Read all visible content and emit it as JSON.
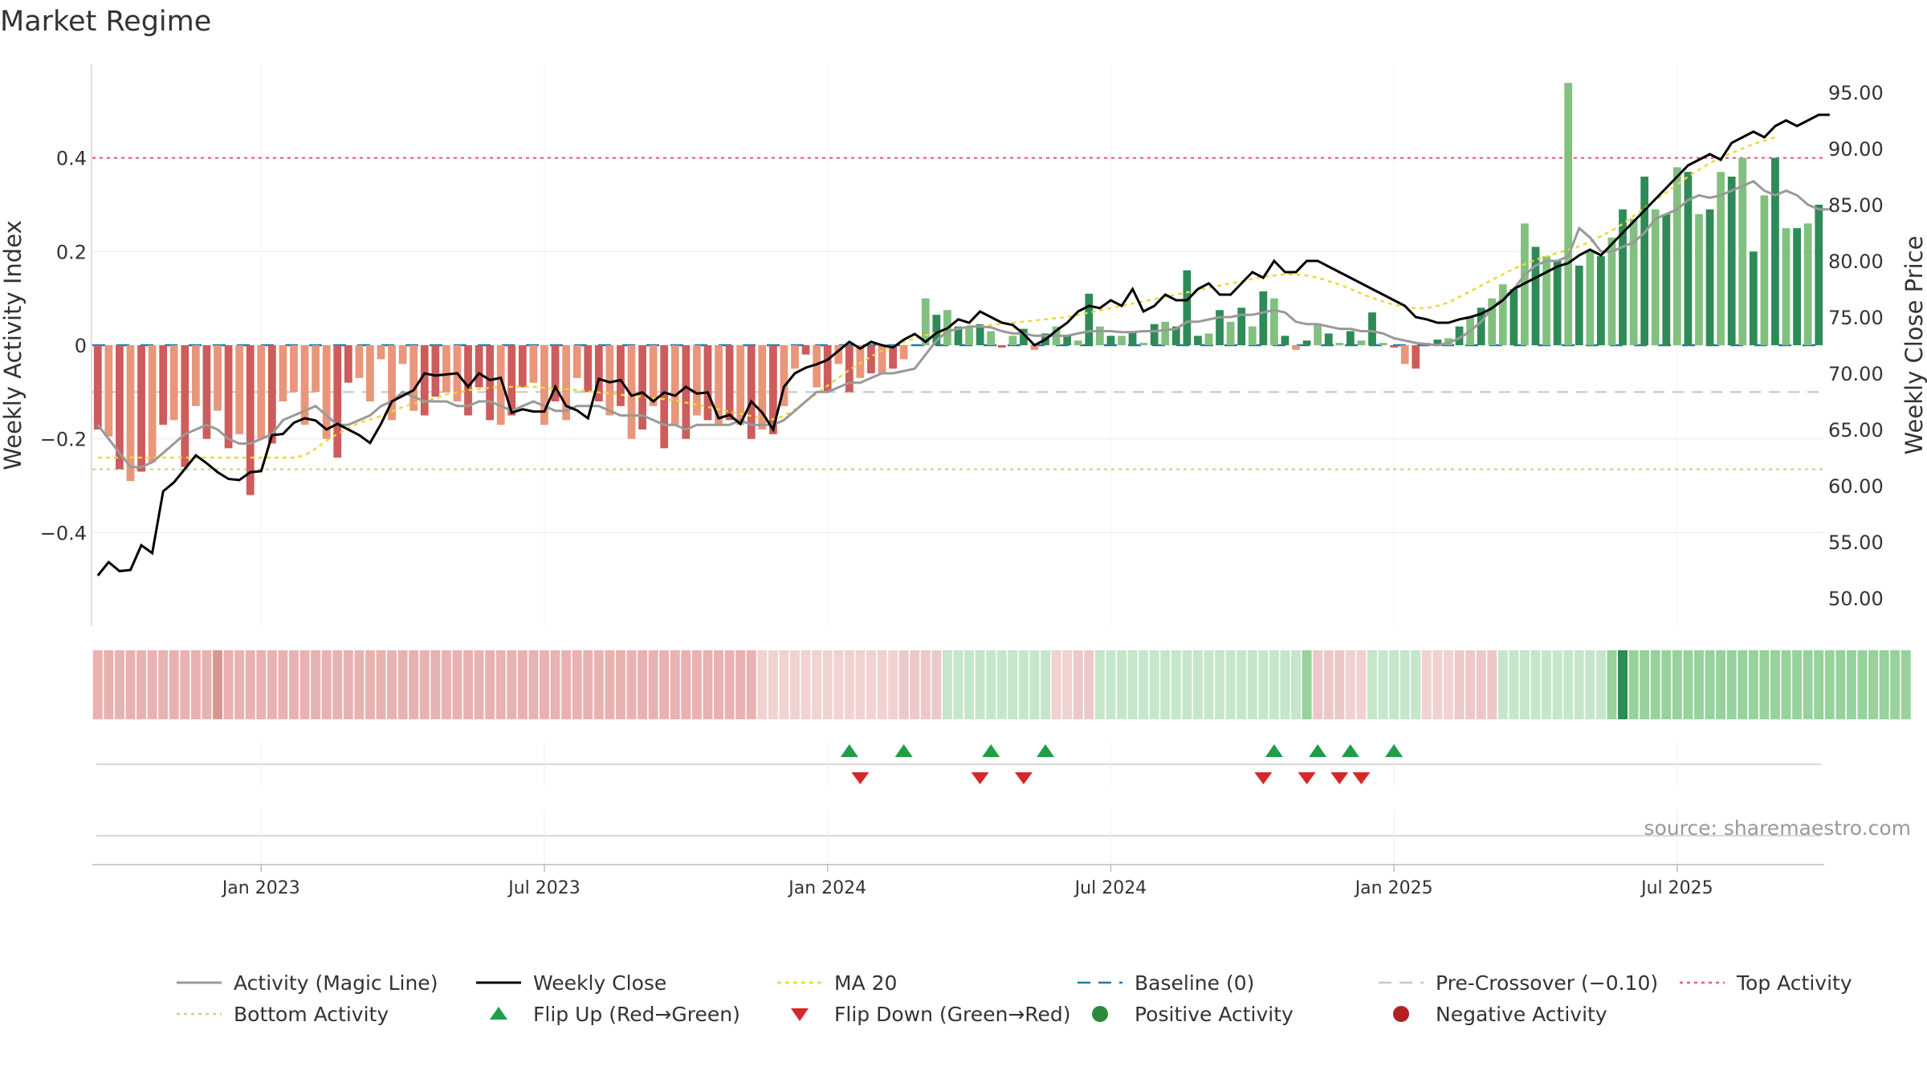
{
  "chart_data": {
    "type": "bar",
    "title": "Market Regime",
    "ylabel": "Weekly Activity Index",
    "y2label": "Weekly Close Price",
    "source": "source: sharemaestro.com",
    "ylim": [
      -0.6,
      0.6
    ],
    "y2lim": [
      47.5,
      97.5
    ],
    "y_ticks": [
      {
        "v": 0.4,
        "label": "0.4"
      },
      {
        "v": 0.2,
        "label": "0.2"
      },
      {
        "v": 0,
        "label": "0"
      },
      {
        "v": -0.2,
        "label": "−0.2"
      },
      {
        "v": -0.4,
        "label": "−0.4"
      }
    ],
    "y2_ticks": [
      {
        "v": 95,
        "label": "95.00"
      },
      {
        "v": 90,
        "label": "90.00"
      },
      {
        "v": 85,
        "label": "85.00"
      },
      {
        "v": 80,
        "label": "80.00"
      },
      {
        "v": 75,
        "label": "75.00"
      },
      {
        "v": 70,
        "label": "70.00"
      },
      {
        "v": 65,
        "label": "65.00"
      },
      {
        "v": 60,
        "label": "60.00"
      },
      {
        "v": 55,
        "label": "55.00"
      },
      {
        "v": 50,
        "label": "50.00"
      }
    ],
    "x_ticks": [
      {
        "i": 15,
        "label": "Jan 2023"
      },
      {
        "i": 41,
        "label": "Jul 2023"
      },
      {
        "i": 67,
        "label": "Jan 2024"
      },
      {
        "i": 93,
        "label": "Jul 2024"
      },
      {
        "i": 119,
        "label": "Jan 2025"
      },
      {
        "i": 145,
        "label": "Jul 2025"
      }
    ],
    "reference_lines": {
      "baseline": 0,
      "pre_crossover": -0.1,
      "top_activity": 0.4,
      "bottom_activity": -0.265
    },
    "activity": [
      -0.18,
      -0.195,
      -0.265,
      -0.29,
      -0.27,
      -0.25,
      -0.17,
      -0.16,
      -0.26,
      -0.13,
      -0.2,
      -0.14,
      -0.22,
      -0.19,
      -0.32,
      -0.2,
      -0.21,
      -0.12,
      -0.1,
      -0.17,
      -0.1,
      -0.2,
      -0.24,
      -0.08,
      -0.07,
      -0.12,
      -0.03,
      -0.16,
      -0.04,
      -0.14,
      -0.15,
      -0.11,
      -0.1,
      -0.12,
      -0.15,
      -0.09,
      -0.16,
      -0.17,
      -0.15,
      -0.09,
      -0.08,
      -0.17,
      -0.12,
      -0.16,
      -0.07,
      -0.1,
      -0.12,
      -0.15,
      -0.13,
      -0.2,
      -0.18,
      -0.13,
      -0.22,
      -0.17,
      -0.2,
      -0.15,
      -0.16,
      -0.17,
      -0.16,
      -0.17,
      -0.2,
      -0.18,
      -0.19,
      -0.13,
      -0.05,
      -0.02,
      -0.09,
      -0.1,
      -0.04,
      -0.1,
      -0.07,
      -0.06,
      -0.06,
      -0.05,
      -0.03,
      0,
      0.1,
      0.065,
      0.075,
      0.04,
      0.04,
      0.045,
      0.03,
      -0.005,
      0.02,
      0.035,
      -0.01,
      0.025,
      0.04,
      0.02,
      0.01,
      0.11,
      0.04,
      0.02,
      0.02,
      0.03,
      0.005,
      0.045,
      0.05,
      0.04,
      0.16,
      0.02,
      0.025,
      0.075,
      0.05,
      0.08,
      0.04,
      0.115,
      0.1,
      0.02,
      -0.01,
      0.01,
      0.045,
      0.025,
      0.005,
      0.03,
      0.01,
      0.07,
      0.005,
      -0.005,
      -0.04,
      -0.05,
      0.005,
      0.012,
      0.015,
      0.04,
      0.06,
      0.08,
      0.1,
      0.13,
      0.12,
      0.26,
      0.21,
      0.19,
      0.18,
      0.56,
      0.17,
      0.2,
      0.19,
      0.23,
      0.29,
      0.27,
      0.36,
      0.29,
      0.28,
      0.38,
      0.37,
      0.28,
      0.29,
      0.37,
      0.36,
      0.4,
      0.2,
      0.32,
      0.4,
      0.25,
      0.25,
      0.26,
      0.3
    ],
    "magic_line": [
      -0.17,
      -0.2,
      -0.23,
      -0.26,
      -0.26,
      -0.25,
      -0.23,
      -0.21,
      -0.19,
      -0.18,
      -0.17,
      -0.18,
      -0.2,
      -0.21,
      -0.21,
      -0.2,
      -0.19,
      -0.16,
      -0.15,
      -0.14,
      -0.13,
      -0.15,
      -0.17,
      -0.17,
      -0.16,
      -0.15,
      -0.13,
      -0.12,
      -0.1,
      -0.11,
      -0.12,
      -0.12,
      -0.12,
      -0.13,
      -0.13,
      -0.12,
      -0.12,
      -0.13,
      -0.14,
      -0.13,
      -0.12,
      -0.13,
      -0.14,
      -0.14,
      -0.13,
      -0.13,
      -0.13,
      -0.14,
      -0.15,
      -0.15,
      -0.15,
      -0.16,
      -0.17,
      -0.17,
      -0.18,
      -0.17,
      -0.17,
      -0.17,
      -0.17,
      -0.16,
      -0.17,
      -0.17,
      -0.17,
      -0.16,
      -0.14,
      -0.12,
      -0.1,
      -0.1,
      -0.09,
      -0.08,
      -0.08,
      -0.07,
      -0.06,
      -0.06,
      -0.055,
      -0.05,
      -0.02,
      0.01,
      0.03,
      0.035,
      0.04,
      0.04,
      0.038,
      0.03,
      0.025,
      0.025,
      0.02,
      0.02,
      0.02,
      0.02,
      0.025,
      0.03,
      0.03,
      0.03,
      0.028,
      0.028,
      0.03,
      0.03,
      0.032,
      0.035,
      0.05,
      0.05,
      0.055,
      0.06,
      0.06,
      0.065,
      0.065,
      0.07,
      0.075,
      0.07,
      0.05,
      0.045,
      0.045,
      0.04,
      0.035,
      0.035,
      0.03,
      0.03,
      0.025,
      0.015,
      0.01,
      0.005,
      0.002,
      0.0,
      0.005,
      0.015,
      0.03,
      0.05,
      0.08,
      0.1,
      0.12,
      0.15,
      0.17,
      0.18,
      0.18,
      0.19,
      0.25,
      0.23,
      0.2,
      0.2,
      0.21,
      0.22,
      0.24,
      0.27,
      0.28,
      0.29,
      0.31,
      0.32,
      0.315,
      0.32,
      0.33,
      0.34,
      0.35,
      0.33,
      0.32,
      0.33,
      0.32,
      0.3,
      0.29,
      0.29
    ],
    "weekly_close": [
      52,
      53.2,
      52.4,
      52.5,
      54.7,
      54,
      59.5,
      60.3,
      61.5,
      62.7,
      62,
      61.2,
      60.6,
      60.5,
      61.2,
      61.3,
      64.5,
      64.6,
      65.6,
      66,
      65.8,
      65,
      65.5,
      65,
      64.5,
      63.8,
      65.5,
      67.5,
      68,
      68.5,
      70,
      69.8,
      69.9,
      70,
      68.8,
      70,
      69.4,
      69.6,
      66.5,
      66.8,
      66.6,
      66.6,
      68.8,
      67.1,
      66.7,
      66,
      69.5,
      69.2,
      69.4,
      68,
      68.3,
      67.5,
      68.3,
      68,
      68.8,
      68.2,
      68.3,
      66,
      66.3,
      65.5,
      67.5,
      66.5,
      65,
      68.8,
      70,
      70.5,
      70.8,
      71.2,
      72,
      72.8,
      72.2,
      72.8,
      72.5,
      72.3,
      73,
      73.5,
      72.8,
      73.6,
      74,
      74.8,
      74.5,
      75.5,
      75,
      74.5,
      74.3,
      73.5,
      72.5,
      73,
      73.8,
      74.5,
      75.5,
      76,
      75.8,
      76.5,
      76,
      77.5,
      75.5,
      76,
      77,
      76.5,
      76.5,
      77.5,
      78,
      77,
      77,
      78,
      79,
      78.5,
      80,
      79,
      79,
      80,
      80,
      79.5,
      79,
      78.5,
      78,
      77.5,
      77,
      76.5,
      76,
      75,
      74.8,
      74.5,
      74.5,
      74.8,
      75,
      75.3,
      75.8,
      76.5,
      77.5,
      78,
      78.5,
      79,
      79.5,
      79.8,
      80.5,
      81,
      80.5,
      81.5,
      82.5,
      83.5,
      84.5,
      85.5,
      86.5,
      87.5,
      88.5,
      89,
      89.5,
      89,
      90.5,
      91,
      91.5,
      91,
      92,
      92.5,
      92,
      92.5,
      93,
      93
    ],
    "ma20": [
      62.5,
      62.5,
      62.5,
      62.5,
      62.5,
      62.5,
      62.5,
      62.5,
      62.5,
      62.5,
      62.5,
      62.5,
      62.5,
      62.5,
      62.5,
      62.5,
      62.5,
      62.5,
      62.5,
      62.7,
      63.3,
      64,
      64.6,
      65.1,
      65.6,
      65.9,
      66.2,
      66.6,
      67,
      67.3,
      67.5,
      67.8,
      68.1,
      68.3,
      68.5,
      68.6,
      68.7,
      68.8,
      68.8,
      68.8,
      68.8,
      68.7,
      68.6,
      68.6,
      68.5,
      68.4,
      68.3,
      68.2,
      68.1,
      68,
      67.9,
      67.8,
      67.7,
      67.6,
      67.4,
      67.2,
      67,
      66.8,
      66.6,
      66.4,
      66.2,
      66,
      65.9,
      66.2,
      66.8,
      67.5,
      68.2,
      68.9,
      69.6,
      70.3,
      70.9,
      71.5,
      72,
      72.4,
      72.8,
      73.1,
      73.4,
      73.6,
      73.8,
      74,
      74.1,
      74.2,
      74.3,
      74.4,
      74.5,
      74.6,
      74.7,
      74.8,
      74.9,
      75,
      75.2,
      75.4,
      75.6,
      75.8,
      76,
      76.2,
      76.4,
      76.6,
      76.8,
      77,
      77.2,
      77.4,
      77.6,
      77.8,
      78,
      78.2,
      78.4,
      78.6,
      78.7,
      78.8,
      78.8,
      78.7,
      78.5,
      78.2,
      77.9,
      77.5,
      77.1,
      76.7,
      76.4,
      76.1,
      75.9,
      75.8,
      75.8,
      76,
      76.3,
      76.8,
      77.3,
      77.8,
      78.3,
      78.8,
      79.3,
      79.7,
      80.1,
      80.4,
      80.7,
      81,
      81.3,
      81.7,
      82.2,
      82.7,
      83.3,
      84,
      84.7,
      85.4,
      86.1,
      86.8,
      87.5,
      88.1,
      88.7,
      89.2,
      89.6,
      90,
      90.4,
      90.7,
      91
    ],
    "regime_strip": [
      "r",
      "r",
      "r",
      "r",
      "r",
      "r",
      "r",
      "r",
      "r",
      "r",
      "r",
      "R",
      "r",
      "r",
      "r",
      "r",
      "r",
      "r",
      "r",
      "r",
      "r",
      "r",
      "r",
      "r",
      "r",
      "r",
      "r",
      "r",
      "r",
      "r",
      "r",
      "r",
      "r",
      "r",
      "r",
      "r",
      "r",
      "r",
      "r",
      "r",
      "r",
      "r",
      "r",
      "r",
      "r",
      "r",
      "r",
      "r",
      "r",
      "r",
      "r",
      "r",
      "r",
      "r",
      "r",
      "r",
      "r",
      "r",
      "r",
      "r",
      "r",
      "l",
      "l",
      "l",
      "l",
      "l",
      "l",
      "l",
      "l",
      "l",
      "l",
      "l",
      "l",
      "l",
      "p",
      "p",
      "p",
      "p",
      "g",
      "g",
      "g",
      "g",
      "g",
      "g",
      "g",
      "g",
      "g",
      "g",
      "l",
      "l",
      "p",
      "p",
      "g",
      "g",
      "g",
      "g",
      "g",
      "g",
      "g",
      "g",
      "g",
      "g",
      "g",
      "g",
      "g",
      "g",
      "g",
      "g",
      "g",
      "g",
      "g",
      "G",
      "p",
      "p",
      "p",
      "l",
      "l",
      "g",
      "g",
      "g",
      "g",
      "g",
      "l",
      "l",
      "l",
      "p",
      "p",
      "p",
      "p",
      "g",
      "g",
      "g",
      "g",
      "g",
      "g",
      "g",
      "g",
      "g",
      "g",
      "G",
      "X",
      "G",
      "G",
      "G",
      "G",
      "G",
      "G",
      "G",
      "G",
      "G",
      "G",
      "G",
      "G",
      "G",
      "G",
      "G",
      "G",
      "G",
      "G",
      "G",
      "G",
      "G",
      "G",
      "G",
      "G",
      "G",
      "G"
    ],
    "flip_up": [
      69,
      74,
      82,
      87,
      108,
      112,
      115,
      119
    ],
    "flip_down": [
      70,
      81,
      85,
      107,
      111,
      114,
      116
    ],
    "legend": [
      {
        "key": "magic",
        "label": "Activity (Magic Line)"
      },
      {
        "key": "close",
        "label": "Weekly Close"
      },
      {
        "key": "ma20",
        "label": "MA 20"
      },
      {
        "key": "baseline",
        "label": "Baseline (0)"
      },
      {
        "key": "precross",
        "label": "Pre-Crossover (−0.10)"
      },
      {
        "key": "top",
        "label": "Top Activity"
      },
      {
        "key": "bottom",
        "label": "Bottom Activity"
      },
      {
        "key": "flipup",
        "label": "Flip Up (Red→Green)"
      },
      {
        "key": "flipdown",
        "label": "Flip Down (Green→Red)"
      },
      {
        "key": "pos",
        "label": "Positive Activity"
      },
      {
        "key": "neg",
        "label": "Negative Activity"
      }
    ],
    "colors": {
      "bar_pos_strong": "#2e8b57",
      "bar_pos_light": "#82c07f",
      "bar_neg_strong": "#cd5c5c",
      "bar_neg_light": "#e9967a",
      "magic": "#999999",
      "close": "#000000",
      "ma20": "#ecd932",
      "baseline": "#1f77b4",
      "precross": "#c8c8c8",
      "top": "#e0607e",
      "bottom": "#b8dc88",
      "flip_up": "#1f9e4a",
      "flip_down": "#d62728",
      "pos_dot": "#2a8c3a",
      "neg_dot": "#b22222"
    }
  }
}
